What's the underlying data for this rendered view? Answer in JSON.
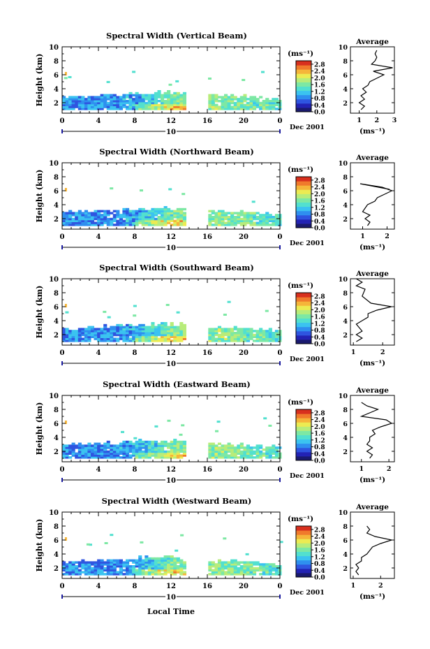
{
  "figure": {
    "xlabel": "Local Time",
    "date_label": "Dec 2001",
    "day_label": "10",
    "avg_title": "Average",
    "avg_unit": "(ms⁻¹)",
    "colorbar_unit": "(ms⁻¹)",
    "ylabel": "Height (km)",
    "colors": {
      "colormap": [
        "#1a1a6e",
        "#2323b4",
        "#2f55e0",
        "#2f8fef",
        "#3bc3f0",
        "#52e0cf",
        "#7de8a4",
        "#b8ec7a",
        "#eceb52",
        "#f5b53a",
        "#f07a2c",
        "#d8301e"
      ]
    }
  },
  "chart_data": [
    {
      "type": "heatmap",
      "title": "Spectral Width (Vertical Beam)",
      "x_ticks": [
        "0",
        "4",
        "8",
        "12",
        "16",
        "20",
        "0"
      ],
      "xlim": [
        0,
        24
      ],
      "y_ticks": [
        "2",
        "4",
        "6",
        "8",
        "10"
      ],
      "ylim": [
        0.5,
        10
      ],
      "colorbar_ticks": [
        "0.0",
        "0.4",
        "0.8",
        "1.2",
        "1.6",
        "2.0",
        "2.4",
        "2.8"
      ],
      "zlim": [
        0,
        3.0
      ],
      "data_gap_hours": [
        13.4,
        15.8
      ],
      "mean_width_by_hour": [
        [
          1,
          0.9
        ],
        [
          3,
          0.9
        ],
        [
          6,
          0.9
        ],
        [
          9,
          1.1
        ],
        [
          12,
          1.6
        ],
        [
          17,
          1.7
        ],
        [
          20,
          1.6
        ],
        [
          23,
          1.4
        ]
      ],
      "echo_top_km_by_hour": [
        [
          0,
          2.8
        ],
        [
          4,
          2.9
        ],
        [
          8,
          3.2
        ],
        [
          12,
          3.4
        ],
        [
          16,
          3.0
        ],
        [
          20,
          2.8
        ],
        [
          23.5,
          2.5
        ]
      ],
      "average_profile": {
        "xlabel": "(ms⁻¹)",
        "x_ticks": [
          "1",
          "2",
          "3"
        ],
        "xlim": [
          0.5,
          3
        ],
        "y_ticks": [
          "2",
          "4",
          "6",
          "8",
          "10"
        ],
        "ylim": [
          0.5,
          10
        ],
        "points": [
          [
            1.1,
            1.0
          ],
          [
            1.3,
            1.5
          ],
          [
            1.0,
            2.0
          ],
          [
            1.3,
            2.5
          ],
          [
            1.1,
            3.0
          ],
          [
            1.4,
            3.5
          ],
          [
            1.2,
            4.0
          ],
          [
            1.5,
            4.5
          ],
          [
            1.6,
            5.0
          ],
          [
            2.0,
            5.5
          ],
          [
            2.4,
            6.0
          ],
          [
            1.8,
            6.5
          ],
          [
            2.9,
            7.0
          ],
          [
            1.7,
            7.5
          ],
          [
            1.9,
            8.0
          ],
          [
            2.0,
            8.5
          ],
          [
            1.9,
            9.0
          ],
          [
            2.0,
            9.5
          ]
        ]
      }
    },
    {
      "type": "heatmap",
      "title": "Spectral Width (Northward Beam)",
      "x_ticks": [
        "0",
        "4",
        "8",
        "12",
        "16",
        "20",
        "0"
      ],
      "xlim": [
        0,
        24
      ],
      "y_ticks": [
        "2",
        "4",
        "6",
        "8",
        "10"
      ],
      "ylim": [
        0.5,
        10
      ],
      "colorbar_ticks": [
        "0.0",
        "0.4",
        "0.8",
        "1.2",
        "1.6",
        "2.0",
        "2.4",
        "2.8"
      ],
      "zlim": [
        0,
        3.0
      ],
      "data_gap_hours": [
        13.4,
        15.8
      ],
      "mean_width_by_hour": [
        [
          1,
          0.9
        ],
        [
          3,
          0.9
        ],
        [
          6,
          0.9
        ],
        [
          9,
          1.1
        ],
        [
          12,
          1.6
        ],
        [
          17,
          1.7
        ],
        [
          20,
          1.6
        ],
        [
          23,
          1.4
        ]
      ],
      "echo_top_km_by_hour": [
        [
          0,
          2.8
        ],
        [
          4,
          3.0
        ],
        [
          8,
          3.3
        ],
        [
          12,
          3.4
        ],
        [
          16,
          3.0
        ],
        [
          20,
          2.8
        ],
        [
          23.5,
          2.5
        ]
      ],
      "average_profile": {
        "xlabel": "(ms⁻¹)",
        "x_ticks": [
          "1",
          "2"
        ],
        "xlim": [
          0.5,
          2.3
        ],
        "y_ticks": [
          "2",
          "4",
          "6",
          "8",
          "10"
        ],
        "ylim": [
          0.5,
          10
        ],
        "points": [
          [
            1.2,
            1.0
          ],
          [
            1.3,
            1.5
          ],
          [
            1.1,
            2.0
          ],
          [
            1.3,
            2.5
          ],
          [
            1.0,
            3.0
          ],
          [
            1.1,
            3.5
          ],
          [
            1.2,
            4.0
          ],
          [
            1.5,
            4.5
          ],
          [
            1.6,
            5.0
          ],
          [
            1.9,
            5.5
          ],
          [
            2.2,
            6.0
          ],
          [
            1.8,
            6.5
          ],
          [
            0.9,
            7.0
          ],
          [
            2.1,
            6.2
          ]
        ]
      }
    },
    {
      "type": "heatmap",
      "title": "Spectral Width (Southward Beam)",
      "x_ticks": [
        "0",
        "4",
        "8",
        "12",
        "16",
        "20",
        "0"
      ],
      "xlim": [
        0,
        24
      ],
      "y_ticks": [
        "2",
        "4",
        "6",
        "8",
        "10"
      ],
      "ylim": [
        0.5,
        10
      ],
      "colorbar_ticks": [
        "0.0",
        "0.4",
        "0.8",
        "1.2",
        "1.6",
        "2.0",
        "2.4",
        "2.8"
      ],
      "zlim": [
        0,
        3.0
      ],
      "data_gap_hours": [
        13.4,
        15.8
      ],
      "mean_width_by_hour": [
        [
          1,
          0.9
        ],
        [
          3,
          0.9
        ],
        [
          6,
          0.9
        ],
        [
          9,
          1.1
        ],
        [
          12,
          1.6
        ],
        [
          17,
          1.7
        ],
        [
          20,
          1.6
        ],
        [
          23,
          1.4
        ]
      ],
      "echo_top_km_by_hour": [
        [
          0,
          2.8
        ],
        [
          4,
          3.0
        ],
        [
          8,
          3.3
        ],
        [
          12,
          3.4
        ],
        [
          16,
          3.0
        ],
        [
          20,
          2.8
        ],
        [
          23.5,
          2.5
        ]
      ],
      "average_profile": {
        "xlabel": "(ms⁻¹)",
        "x_ticks": [
          "1",
          "2"
        ],
        "xlim": [
          0.9,
          2.4
        ],
        "y_ticks": [
          "2",
          "4",
          "6",
          "8",
          "10"
        ],
        "ylim": [
          0.5,
          10
        ],
        "points": [
          [
            1.1,
            1.0
          ],
          [
            1.3,
            1.5
          ],
          [
            1.1,
            2.0
          ],
          [
            1.3,
            2.5
          ],
          [
            1.2,
            3.0
          ],
          [
            1.1,
            3.5
          ],
          [
            1.3,
            4.0
          ],
          [
            1.5,
            4.5
          ],
          [
            1.5,
            5.0
          ],
          [
            1.8,
            5.5
          ],
          [
            2.3,
            6.0
          ],
          [
            1.6,
            6.5
          ],
          [
            1.3,
            7.5
          ],
          [
            1.4,
            8.5
          ],
          [
            1.1,
            9.0
          ],
          [
            1.3,
            9.5
          ],
          [
            1.1,
            10.0
          ]
        ]
      }
    },
    {
      "type": "heatmap",
      "title": "Spectral Width (Eastward Beam)",
      "x_ticks": [
        "0",
        "4",
        "8",
        "12",
        "16",
        "20",
        "0"
      ],
      "xlim": [
        0,
        24
      ],
      "y_ticks": [
        "2",
        "4",
        "6",
        "8",
        "10"
      ],
      "ylim": [
        0.5,
        10
      ],
      "colorbar_ticks": [
        "0.0",
        "0.4",
        "0.8",
        "1.2",
        "1.6",
        "2.0",
        "2.4",
        "2.8"
      ],
      "zlim": [
        0,
        3.0
      ],
      "data_gap_hours": [
        13.4,
        15.8
      ],
      "mean_width_by_hour": [
        [
          1,
          0.9
        ],
        [
          3,
          0.9
        ],
        [
          6,
          0.9
        ],
        [
          9,
          1.1
        ],
        [
          12,
          1.6
        ],
        [
          17,
          1.7
        ],
        [
          20,
          1.6
        ],
        [
          23,
          1.4
        ]
      ],
      "echo_top_km_by_hour": [
        [
          0,
          2.8
        ],
        [
          4,
          3.0
        ],
        [
          8,
          3.4
        ],
        [
          12,
          3.4
        ],
        [
          16,
          3.0
        ],
        [
          20,
          2.8
        ],
        [
          23.5,
          2.5
        ]
      ],
      "average_profile": {
        "xlabel": "(ms⁻¹)",
        "x_ticks": [
          "1",
          "2"
        ],
        "xlim": [
          0.6,
          2.2
        ],
        "y_ticks": [
          "2",
          "4",
          "6",
          "8",
          "10"
        ],
        "ylim": [
          0.5,
          10
        ],
        "points": [
          [
            1.3,
            1.0
          ],
          [
            1.4,
            1.5
          ],
          [
            1.2,
            2.0
          ],
          [
            1.4,
            2.5
          ],
          [
            1.2,
            3.0
          ],
          [
            1.3,
            3.5
          ],
          [
            1.3,
            4.0
          ],
          [
            1.5,
            4.5
          ],
          [
            1.4,
            5.0
          ],
          [
            1.7,
            5.5
          ],
          [
            2.1,
            6.0
          ],
          [
            1.9,
            6.5
          ],
          [
            1.0,
            7.0
          ],
          [
            1.6,
            8.0
          ],
          [
            1.2,
            8.5
          ],
          [
            1.0,
            9.0
          ]
        ]
      }
    },
    {
      "type": "heatmap",
      "title": "Spectral Width (Westward Beam)",
      "x_ticks": [
        "0",
        "4",
        "8",
        "12",
        "16",
        "20",
        "0"
      ],
      "xlim": [
        0,
        24
      ],
      "y_ticks": [
        "2",
        "4",
        "6",
        "8",
        "10"
      ],
      "ylim": [
        0.5,
        10
      ],
      "colorbar_ticks": [
        "0.0",
        "0.4",
        "0.8",
        "1.2",
        "1.6",
        "2.0",
        "2.4",
        "2.8"
      ],
      "zlim": [
        0,
        3.0
      ],
      "data_gap_hours": [
        13.4,
        15.8
      ],
      "mean_width_by_hour": [
        [
          1,
          0.9
        ],
        [
          3,
          0.9
        ],
        [
          6,
          0.9
        ],
        [
          9,
          1.1
        ],
        [
          12,
          1.6
        ],
        [
          17,
          1.7
        ],
        [
          20,
          1.6
        ],
        [
          23,
          1.4
        ]
      ],
      "echo_top_km_by_hour": [
        [
          0,
          2.8
        ],
        [
          4,
          3.0
        ],
        [
          8,
          3.3
        ],
        [
          12,
          3.4
        ],
        [
          16,
          3.0
        ],
        [
          20,
          2.8
        ],
        [
          23.5,
          2.5
        ]
      ],
      "average_profile": {
        "xlabel": "(ms⁻¹)",
        "x_ticks": [
          "1",
          "2"
        ],
        "xlim": [
          0.9,
          2.5
        ],
        "y_ticks": [
          "2",
          "4",
          "6",
          "8",
          "10"
        ],
        "ylim": [
          0.5,
          10
        ],
        "points": [
          [
            1.2,
            1.0
          ],
          [
            1.1,
            1.5
          ],
          [
            1.2,
            2.0
          ],
          [
            1.1,
            2.5
          ],
          [
            1.3,
            3.0
          ],
          [
            1.3,
            3.5
          ],
          [
            1.5,
            4.0
          ],
          [
            1.6,
            4.5
          ],
          [
            1.7,
            5.0
          ],
          [
            2.0,
            5.5
          ],
          [
            2.4,
            6.0
          ],
          [
            1.8,
            6.5
          ],
          [
            1.5,
            7.0
          ],
          [
            1.6,
            7.5
          ],
          [
            1.5,
            8.0
          ]
        ]
      }
    }
  ]
}
